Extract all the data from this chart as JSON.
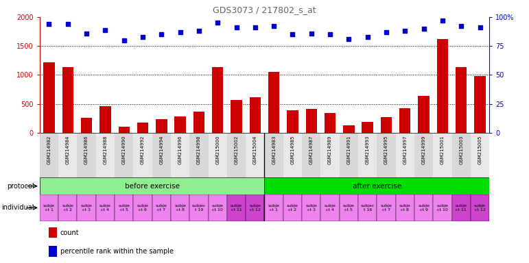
{
  "title": "GDS3073 / 217802_s_at",
  "samples": [
    "GSM214982",
    "GSM214984",
    "GSM214986",
    "GSM214988",
    "GSM214990",
    "GSM214992",
    "GSM214994",
    "GSM214996",
    "GSM214998",
    "GSM215000",
    "GSM215002",
    "GSM215004",
    "GSM214983",
    "GSM214985",
    "GSM214987",
    "GSM214989",
    "GSM214991",
    "GSM214993",
    "GSM214995",
    "GSM214997",
    "GSM214999",
    "GSM215001",
    "GSM215003",
    "GSM215005"
  ],
  "counts": [
    1220,
    1130,
    260,
    455,
    100,
    175,
    235,
    280,
    370,
    1130,
    570,
    610,
    1050,
    390,
    415,
    345,
    135,
    190,
    275,
    420,
    640,
    1620,
    1130,
    985
  ],
  "percentiles": [
    94,
    94,
    86,
    89,
    80,
    83,
    85,
    87,
    88,
    95,
    91,
    91,
    92,
    85,
    86,
    85,
    81,
    83,
    87,
    88,
    90,
    97,
    92,
    91
  ],
  "protocol_groups": [
    {
      "label": "before exercise",
      "start": 0,
      "end": 12,
      "color": "#90ee90"
    },
    {
      "label": "after exercise",
      "start": 12,
      "end": 24,
      "color": "#00dd00"
    }
  ],
  "individual_labels_line1": [
    "subje",
    "subje",
    "subje",
    "subje",
    "subje",
    "subje",
    "subje",
    "subje",
    "subjec",
    "subje",
    "subje",
    "subje",
    "subje",
    "subje",
    "subje",
    "subje",
    "subje",
    "subjec",
    "subje",
    "subje",
    "subje",
    "subje",
    "subje",
    "subje"
  ],
  "individual_labels_line2": [
    "ct 1",
    "ct 2",
    "ct 3",
    "ct 4",
    "ct 5",
    "ct 6",
    "ct 7",
    "ct 8",
    "t 19",
    "ct 10",
    "ct 11",
    "ct 12",
    "ct 1",
    "ct 2",
    "ct 3",
    "ct 4",
    "ct 5",
    "t 16",
    "ct 7",
    "ct 8",
    "ct 9",
    "ct 10",
    "ct 11",
    "ct 12"
  ],
  "individual_colors": [
    "#ee82ee",
    "#ee82ee",
    "#ee82ee",
    "#ee82ee",
    "#ee82ee",
    "#ee82ee",
    "#ee82ee",
    "#ee82ee",
    "#ee82ee",
    "#ee82ee",
    "#cc44cc",
    "#cc44cc",
    "#ee82ee",
    "#ee82ee",
    "#ee82ee",
    "#ee82ee",
    "#ee82ee",
    "#ee82ee",
    "#ee82ee",
    "#ee82ee",
    "#ee82ee",
    "#ee82ee",
    "#cc44cc",
    "#cc44cc"
  ],
  "bar_color": "#cc0000",
  "dot_color": "#0000cc",
  "ylim_left": [
    0,
    2000
  ],
  "yticks_left": [
    0,
    500,
    1000,
    1500,
    2000
  ],
  "yticks_right": [
    0,
    25,
    50,
    75,
    100
  ],
  "figsize": [
    7.71,
    3.84
  ],
  "dpi": 100
}
